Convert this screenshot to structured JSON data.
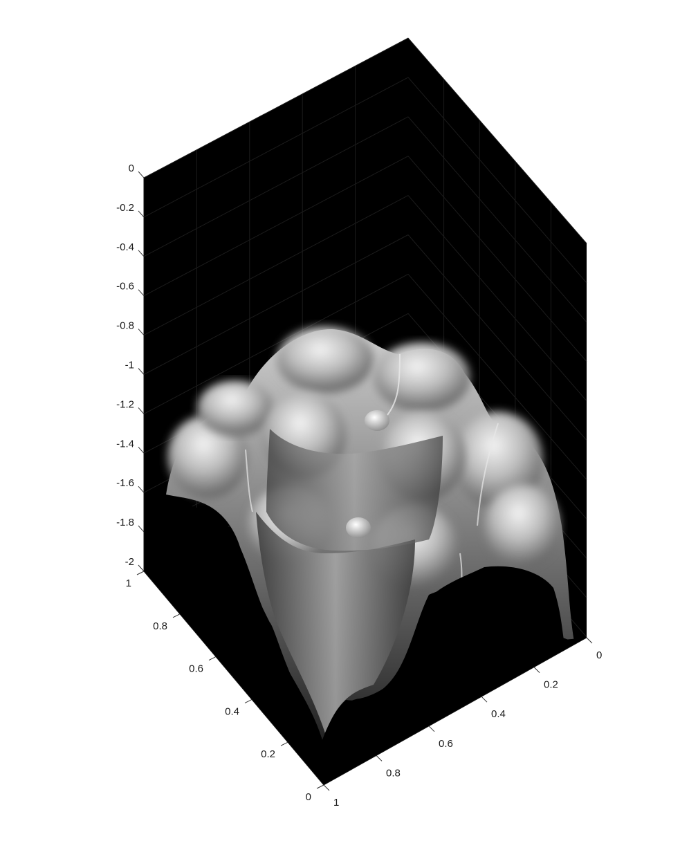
{
  "chart_data": {
    "type": "surface",
    "title": "",
    "xlabel": "",
    "ylabel": "",
    "zlabel": "",
    "colormap": "gray",
    "lighting": "specular",
    "background": "#000000",
    "grid": true,
    "view": "isometric, looking down from high elevation",
    "xlim": [
      0,
      1
    ],
    "ylim": [
      0,
      1
    ],
    "zlim": [
      -2,
      0
    ],
    "x_ticks": [
      "0",
      "0.2",
      "0.4",
      "0.6",
      "0.8",
      "1"
    ],
    "y_ticks": [
      "0",
      "0.2",
      "0.4",
      "0.6",
      "0.8",
      "1"
    ],
    "z_ticks": [
      "0",
      "-0.2",
      "-0.4",
      "-0.6",
      "-0.8",
      "-1",
      "-1.2",
      "-1.4",
      "-1.6",
      "-1.8",
      "-2"
    ],
    "surface_features": {
      "shape": "multi-lobed plateau with two concentric rings of bumps",
      "outer_ring_peaks": 8,
      "inner_ring_peaks": 4,
      "center": "small dimple-topped knob",
      "peak_height_approx": -0.8,
      "min_height_approx": -2
    }
  }
}
